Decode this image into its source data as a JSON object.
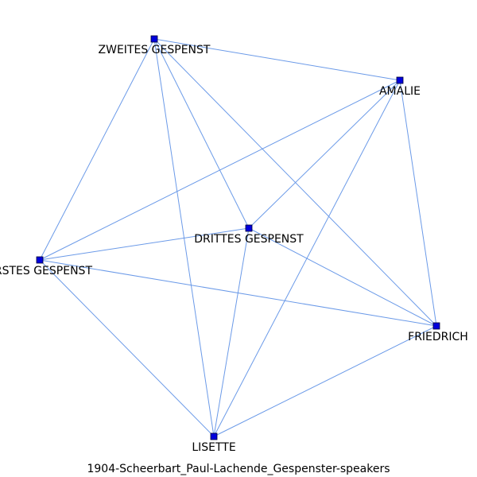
{
  "caption": "1904-Scheerbart_Paul-Lachende_Gespenster-speakers",
  "colors": {
    "node_fill": "#0000dd",
    "edge_stroke": "#6b9ae8",
    "background": "#ffffff"
  },
  "nodes": [
    {
      "id": "zweites",
      "label": "ZWEITES GESPENST"
    },
    {
      "id": "amalie",
      "label": "AMALIE"
    },
    {
      "id": "drittes",
      "label": "DRITTES GESPENST"
    },
    {
      "id": "erstes",
      "label": "ERSTES GESPENST"
    },
    {
      "id": "friedrich",
      "label": "FRIEDRICH"
    },
    {
      "id": "lisette",
      "label": "LISETTE"
    }
  ],
  "edges": [
    [
      "zweites",
      "amalie"
    ],
    [
      "zweites",
      "drittes"
    ],
    [
      "zweites",
      "erstes"
    ],
    [
      "zweites",
      "friedrich"
    ],
    [
      "zweites",
      "lisette"
    ],
    [
      "amalie",
      "drittes"
    ],
    [
      "amalie",
      "erstes"
    ],
    [
      "amalie",
      "friedrich"
    ],
    [
      "amalie",
      "lisette"
    ],
    [
      "drittes",
      "erstes"
    ],
    [
      "drittes",
      "friedrich"
    ],
    [
      "drittes",
      "lisette"
    ],
    [
      "erstes",
      "friedrich"
    ],
    [
      "erstes",
      "lisette"
    ],
    [
      "friedrich",
      "lisette"
    ]
  ]
}
